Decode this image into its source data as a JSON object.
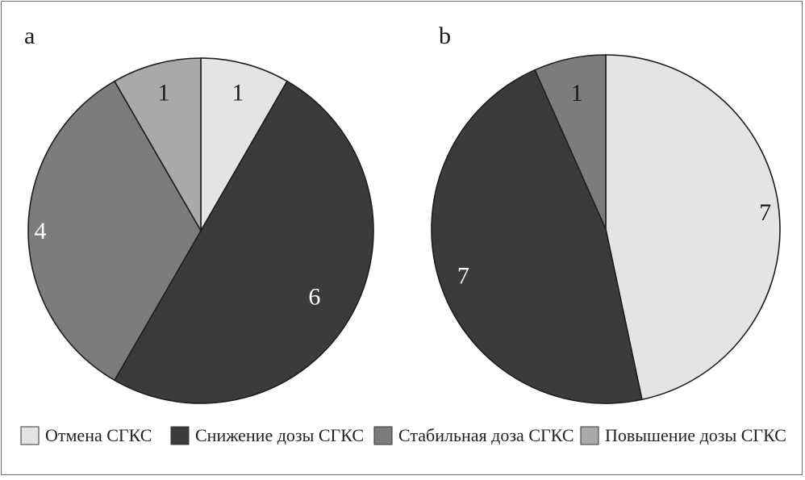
{
  "chart_data": [
    {
      "type": "pie",
      "panel_label": "a",
      "start_angle_deg": 0,
      "direction": "clockwise",
      "slices": [
        {
          "category": "Отмена СГКС",
          "value": 1,
          "label": "1",
          "label_color": "#1a1a1a"
        },
        {
          "category": "Снижение дозы СГКС",
          "value": 6,
          "label": "6",
          "label_color": "#ffffff"
        },
        {
          "category": "Стабильная доза СГКС",
          "value": 4,
          "label": "4",
          "label_color": "#ffffff"
        },
        {
          "category": "Повышение дозы СГКС",
          "value": 1,
          "label": "1",
          "label_color": "#1a1a1a"
        }
      ]
    },
    {
      "type": "pie",
      "panel_label": "b",
      "start_angle_deg": 0,
      "direction": "clockwise",
      "slices": [
        {
          "category": "Отмена СГКС",
          "value": 7,
          "label": "7",
          "label_color": "#1a1a1a"
        },
        {
          "category": "Снижение дозы СГКС",
          "value": 7,
          "label": "7",
          "label_color": "#ffffff"
        },
        {
          "category": "Стабильная доза СГКС",
          "value": 1,
          "label": "1",
          "label_color": "#1a1a1a"
        }
      ]
    }
  ],
  "legend": {
    "placement": "bottom",
    "items": [
      {
        "label": "Отмена СГКС",
        "color": "#e4e4e4"
      },
      {
        "label": "Снижение дозы СГКС",
        "color": "#3b3b3b"
      },
      {
        "label": "Стабильная доза СГКС",
        "color": "#7c7c7c"
      },
      {
        "label": "Повышение дозы СГКС",
        "color": "#a9a9a9"
      }
    ]
  }
}
